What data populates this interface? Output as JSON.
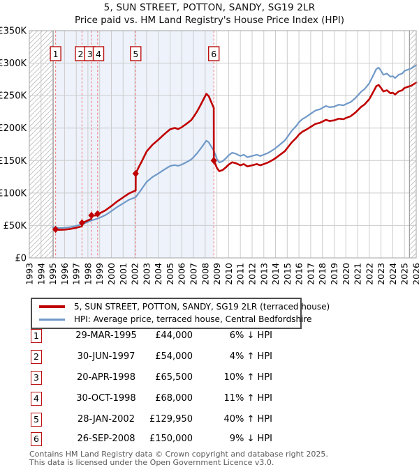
{
  "header": {
    "title": "5, SUN STREET, POTTON, SANDY, SG19 2LR",
    "subtitle": "Price paid vs. HM Land Registry's House Price Index (HPI)"
  },
  "legend": {
    "items": [
      {
        "label": "5, SUN STREET, POTTON, SANDY, SG19 2LR (terraced house)",
        "color": "#c00000"
      },
      {
        "label": "HPI: Average price, terraced house, Central Bedfordshire",
        "color": "#7099c8"
      }
    ]
  },
  "sales_table": {
    "rows": [
      {
        "num": "1",
        "date": "29-MAR-1995",
        "price": "£44,000",
        "pct": "6% ↓ HPI"
      },
      {
        "num": "2",
        "date": "30-JUN-1997",
        "price": "£54,000",
        "pct": "4% ↑ HPI"
      },
      {
        "num": "3",
        "date": "20-APR-1998",
        "price": "£65,500",
        "pct": "10% ↑ HPI"
      },
      {
        "num": "4",
        "date": "30-OCT-1998",
        "price": "£68,000",
        "pct": "11% ↑ HPI"
      },
      {
        "num": "5",
        "date": "28-JAN-2002",
        "price": "£129,950",
        "pct": "40% ↑ HPI"
      },
      {
        "num": "6",
        "date": "26-SEP-2008",
        "price": "£150,000",
        "pct": "9% ↓ HPI"
      }
    ]
  },
  "footer": {
    "line1": "Contains HM Land Registry data © Crown copyright and database right 2025.",
    "line2": "This data is licensed under the Open Government Licence v3.0."
  },
  "chart_data": {
    "type": "line",
    "title": "5, SUN STREET, POTTON, SANDY, SG19 2LR",
    "subtitle": "Price paid vs. HM Land Registry's House Price Index (HPI)",
    "xlim": [
      1993,
      2026
    ],
    "ylim": [
      0,
      350000
    ],
    "grid": true,
    "x_ticks": [
      "1993",
      "1994",
      "1995",
      "1996",
      "1997",
      "1998",
      "1999",
      "2000",
      "2001",
      "2002",
      "2003",
      "2004",
      "2005",
      "2006",
      "2007",
      "2008",
      "2009",
      "2010",
      "2011",
      "2012",
      "2013",
      "2014",
      "2015",
      "2016",
      "2017",
      "2018",
      "2019",
      "2020",
      "2021",
      "2022",
      "2023",
      "2024",
      "2025",
      "2026"
    ],
    "y_ticks": [
      [
        "£0",
        0
      ],
      [
        "£50K",
        50000
      ],
      [
        "£100K",
        100000
      ],
      [
        "£150K",
        150000
      ],
      [
        "£200K",
        200000
      ],
      [
        "£250K",
        250000
      ],
      [
        "£300K",
        300000
      ],
      [
        "£350K",
        350000
      ]
    ],
    "colors": {
      "grid": "#cccccc",
      "border": "#a3a3a3",
      "hatch": "#c4c4c4",
      "hatch_edge": "#8c8c8c",
      "sale_line": "#f28080",
      "sale_box_border": "#b11",
      "shade": "#edf2fb"
    },
    "hatch_regions": [
      [
        1993,
        1995.04
      ],
      [
        2025.42,
        2026
      ]
    ],
    "owned_shade": {
      "from": 1995.238,
      "to": 2008.735
    },
    "sales": [
      {
        "n": "1",
        "year": 1995.238,
        "box_year": 1995.238,
        "price": 44000
      },
      {
        "n": "2",
        "year": 1997.493,
        "box_year": 1997.38,
        "price": 54000
      },
      {
        "n": "3",
        "year": 1998.299,
        "box_year": 1998.17,
        "price": 65500
      },
      {
        "n": "4",
        "year": 1998.827,
        "box_year": 1998.9,
        "price": 68000
      },
      {
        "n": "5",
        "year": 2002.074,
        "box_year": 2002.074,
        "price": 129950
      },
      {
        "n": "6",
        "year": 2008.735,
        "box_year": 2008.735,
        "price": 150000
      }
    ],
    "series": [
      {
        "name": "hpi",
        "legend": "HPI: Average price, terraced house, Central Bedfordshire",
        "color": "#7099c8",
        "width": 2.2,
        "points": [
          [
            1995.0,
            47000
          ],
          [
            1995.3,
            46300
          ],
          [
            1995.6,
            45900
          ],
          [
            1996.0,
            46400
          ],
          [
            1996.5,
            47500
          ],
          [
            1997.0,
            49400
          ],
          [
            1997.49,
            51900
          ],
          [
            1997.8,
            54000
          ],
          [
            1998.0,
            55600
          ],
          [
            1998.3,
            57800
          ],
          [
            1998.6,
            59300
          ],
          [
            1999.0,
            61800
          ],
          [
            1999.5,
            66000
          ],
          [
            2000.0,
            72000
          ],
          [
            2000.5,
            78500
          ],
          [
            2001.0,
            84000
          ],
          [
            2001.5,
            89500
          ],
          [
            2002.07,
            93500
          ],
          [
            2002.3,
            99000
          ],
          [
            2002.6,
            106500
          ],
          [
            2003.0,
            117000
          ],
          [
            2003.5,
            124500
          ],
          [
            2004.0,
            130000
          ],
          [
            2004.5,
            136000
          ],
          [
            2005.0,
            141500
          ],
          [
            2005.4,
            143000
          ],
          [
            2005.7,
            141800
          ],
          [
            2006.0,
            143800
          ],
          [
            2006.4,
            147500
          ],
          [
            2006.8,
            151500
          ],
          [
            2007.0,
            155000
          ],
          [
            2007.3,
            161000
          ],
          [
            2007.6,
            168000
          ],
          [
            2007.9,
            175500
          ],
          [
            2008.1,
            180500
          ],
          [
            2008.3,
            178000
          ],
          [
            2008.5,
            172000
          ],
          [
            2008.74,
            165000
          ],
          [
            2009.0,
            152500
          ],
          [
            2009.2,
            147000
          ],
          [
            2009.5,
            149000
          ],
          [
            2009.8,
            154000
          ],
          [
            2010.0,
            158000
          ],
          [
            2010.3,
            162000
          ],
          [
            2010.6,
            160500
          ],
          [
            2011.0,
            157000
          ],
          [
            2011.3,
            159000
          ],
          [
            2011.6,
            155000
          ],
          [
            2012.0,
            157000
          ],
          [
            2012.4,
            159000
          ],
          [
            2012.7,
            157000
          ],
          [
            2013.0,
            159000
          ],
          [
            2013.4,
            162000
          ],
          [
            2013.8,
            166500
          ],
          [
            2014.0,
            169000
          ],
          [
            2014.4,
            175000
          ],
          [
            2014.8,
            181000
          ],
          [
            2015.0,
            186000
          ],
          [
            2015.4,
            196000
          ],
          [
            2015.8,
            204000
          ],
          [
            2016.0,
            209000
          ],
          [
            2016.3,
            214000
          ],
          [
            2016.6,
            217000
          ],
          [
            2017.0,
            222000
          ],
          [
            2017.4,
            227000
          ],
          [
            2017.8,
            229000
          ],
          [
            2018.0,
            231000
          ],
          [
            2018.3,
            234000
          ],
          [
            2018.6,
            232000
          ],
          [
            2019.0,
            233000
          ],
          [
            2019.4,
            236000
          ],
          [
            2019.8,
            235000
          ],
          [
            2020.0,
            237000
          ],
          [
            2020.4,
            240000
          ],
          [
            2020.8,
            246000
          ],
          [
            2021.0,
            250000
          ],
          [
            2021.3,
            256000
          ],
          [
            2021.6,
            260000
          ],
          [
            2022.0,
            269000
          ],
          [
            2022.3,
            280000
          ],
          [
            2022.6,
            291000
          ],
          [
            2022.8,
            293000
          ],
          [
            2023.0,
            288000
          ],
          [
            2023.2,
            282000
          ],
          [
            2023.5,
            284000
          ],
          [
            2023.8,
            279000
          ],
          [
            2024.0,
            280000
          ],
          [
            2024.2,
            277000
          ],
          [
            2024.5,
            282000
          ],
          [
            2024.8,
            284000
          ],
          [
            2025.0,
            288000
          ],
          [
            2025.3,
            290000
          ],
          [
            2025.6,
            292000
          ],
          [
            2026.0,
            297000
          ]
        ]
      },
      {
        "name": "price-paid",
        "legend": "5, SUN STREET, POTTON, SANDY, SG19 2LR (terraced house)",
        "color": "#c00000",
        "width": 2.6,
        "points": [
          [
            1995.238,
            44000
          ],
          [
            1995.5,
            43300
          ],
          [
            1996.0,
            43600
          ],
          [
            1996.5,
            44700
          ],
          [
            1997.0,
            46400
          ],
          [
            1997.49,
            48800
          ],
          [
            1997.5,
            54000
          ],
          [
            1997.8,
            56200
          ],
          [
            1998.0,
            57800
          ],
          [
            1998.29,
            60100
          ],
          [
            1998.3,
            65500
          ],
          [
            1998.6,
            65300
          ],
          [
            1998.82,
            66200
          ],
          [
            1998.83,
            68000
          ],
          [
            1999.0,
            68600
          ],
          [
            1999.5,
            73300
          ],
          [
            2000.0,
            79900
          ],
          [
            2000.5,
            87100
          ],
          [
            2001.0,
            93200
          ],
          [
            2001.5,
            99300
          ],
          [
            2002.0,
            103400
          ],
          [
            2002.07,
            103800
          ],
          [
            2002.08,
            129950
          ],
          [
            2002.3,
            138600
          ],
          [
            2002.6,
            149100
          ],
          [
            2003.0,
            163800
          ],
          [
            2003.5,
            174300
          ],
          [
            2004.0,
            182000
          ],
          [
            2004.5,
            190400
          ],
          [
            2005.0,
            198100
          ],
          [
            2005.4,
            200200
          ],
          [
            2005.7,
            198500
          ],
          [
            2006.0,
            201300
          ],
          [
            2006.4,
            206500
          ],
          [
            2006.8,
            212100
          ],
          [
            2007.0,
            217000
          ],
          [
            2007.3,
            225400
          ],
          [
            2007.6,
            235200
          ],
          [
            2007.9,
            245700
          ],
          [
            2008.1,
            252700
          ],
          [
            2008.3,
            249200
          ],
          [
            2008.5,
            240800
          ],
          [
            2008.73,
            231000
          ],
          [
            2008.74,
            150000
          ],
          [
            2009.0,
            138600
          ],
          [
            2009.2,
            133600
          ],
          [
            2009.5,
            135500
          ],
          [
            2009.8,
            140000
          ],
          [
            2010.0,
            143600
          ],
          [
            2010.3,
            147300
          ],
          [
            2010.6,
            145900
          ],
          [
            2011.0,
            142700
          ],
          [
            2011.3,
            144500
          ],
          [
            2011.6,
            140900
          ],
          [
            2012.0,
            142700
          ],
          [
            2012.4,
            144500
          ],
          [
            2012.7,
            142700
          ],
          [
            2013.0,
            144500
          ],
          [
            2013.4,
            147300
          ],
          [
            2013.8,
            151400
          ],
          [
            2014.0,
            153600
          ],
          [
            2014.4,
            159100
          ],
          [
            2014.8,
            164500
          ],
          [
            2015.0,
            169100
          ],
          [
            2015.4,
            178200
          ],
          [
            2015.8,
            185500
          ],
          [
            2016.0,
            190000
          ],
          [
            2016.3,
            194500
          ],
          [
            2016.6,
            197300
          ],
          [
            2017.0,
            201800
          ],
          [
            2017.4,
            206400
          ],
          [
            2017.8,
            208200
          ],
          [
            2018.0,
            210000
          ],
          [
            2018.3,
            212700
          ],
          [
            2018.6,
            210900
          ],
          [
            2019.0,
            211800
          ],
          [
            2019.4,
            214500
          ],
          [
            2019.8,
            213600
          ],
          [
            2020.0,
            215500
          ],
          [
            2020.4,
            218200
          ],
          [
            2020.8,
            223600
          ],
          [
            2021.0,
            227300
          ],
          [
            2021.3,
            232700
          ],
          [
            2021.6,
            236400
          ],
          [
            2022.0,
            244500
          ],
          [
            2022.3,
            254500
          ],
          [
            2022.6,
            264500
          ],
          [
            2022.8,
            266400
          ],
          [
            2023.0,
            261800
          ],
          [
            2023.2,
            256400
          ],
          [
            2023.5,
            258200
          ],
          [
            2023.8,
            253600
          ],
          [
            2024.0,
            254500
          ],
          [
            2024.2,
            251800
          ],
          [
            2024.5,
            256400
          ],
          [
            2024.8,
            258200
          ],
          [
            2025.0,
            261800
          ],
          [
            2025.3,
            263600
          ],
          [
            2025.6,
            265500
          ],
          [
            2026.0,
            270000
          ]
        ]
      }
    ]
  }
}
